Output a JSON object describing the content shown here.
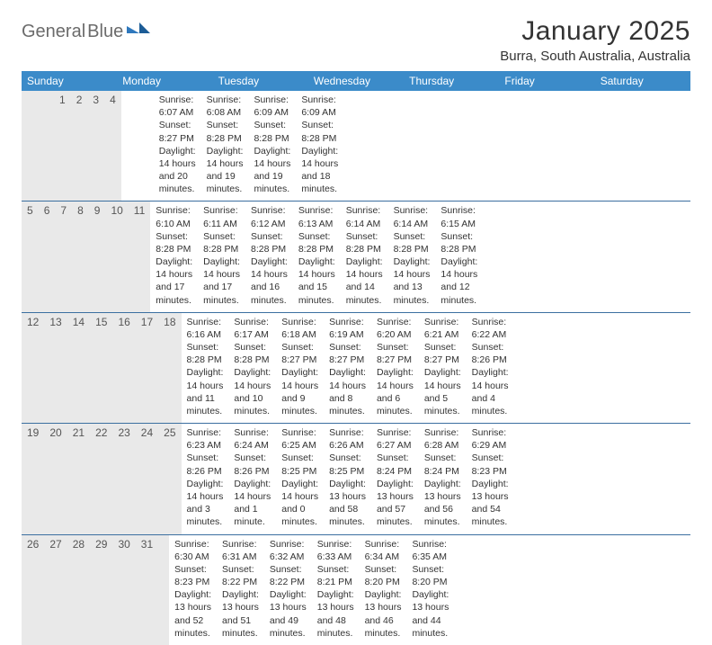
{
  "logo": {
    "word1": "General",
    "word2": "Blue"
  },
  "title": "January 2025",
  "location": "Burra, South Australia, Australia",
  "colors": {
    "header_bg": "#3b8bc9",
    "header_text": "#ffffff",
    "rule": "#3b6fa0",
    "daynum_bg": "#e9e9e9",
    "text": "#333333",
    "logo_gray": "#6b6b6b",
    "logo_blue": "#2f78bd"
  },
  "days_of_week": [
    "Sunday",
    "Monday",
    "Tuesday",
    "Wednesday",
    "Thursday",
    "Friday",
    "Saturday"
  ],
  "weeks": [
    {
      "nums": [
        "",
        "",
        "",
        "1",
        "2",
        "3",
        "4"
      ],
      "cells": [
        {
          "sunrise": "",
          "sunset": "",
          "daylight1": "",
          "daylight2": ""
        },
        {
          "sunrise": "",
          "sunset": "",
          "daylight1": "",
          "daylight2": ""
        },
        {
          "sunrise": "",
          "sunset": "",
          "daylight1": "",
          "daylight2": ""
        },
        {
          "sunrise": "Sunrise: 6:07 AM",
          "sunset": "Sunset: 8:27 PM",
          "daylight1": "Daylight: 14 hours",
          "daylight2": "and 20 minutes."
        },
        {
          "sunrise": "Sunrise: 6:08 AM",
          "sunset": "Sunset: 8:28 PM",
          "daylight1": "Daylight: 14 hours",
          "daylight2": "and 19 minutes."
        },
        {
          "sunrise": "Sunrise: 6:09 AM",
          "sunset": "Sunset: 8:28 PM",
          "daylight1": "Daylight: 14 hours",
          "daylight2": "and 19 minutes."
        },
        {
          "sunrise": "Sunrise: 6:09 AM",
          "sunset": "Sunset: 8:28 PM",
          "daylight1": "Daylight: 14 hours",
          "daylight2": "and 18 minutes."
        }
      ]
    },
    {
      "nums": [
        "5",
        "6",
        "7",
        "8",
        "9",
        "10",
        "11"
      ],
      "cells": [
        {
          "sunrise": "Sunrise: 6:10 AM",
          "sunset": "Sunset: 8:28 PM",
          "daylight1": "Daylight: 14 hours",
          "daylight2": "and 17 minutes."
        },
        {
          "sunrise": "Sunrise: 6:11 AM",
          "sunset": "Sunset: 8:28 PM",
          "daylight1": "Daylight: 14 hours",
          "daylight2": "and 17 minutes."
        },
        {
          "sunrise": "Sunrise: 6:12 AM",
          "sunset": "Sunset: 8:28 PM",
          "daylight1": "Daylight: 14 hours",
          "daylight2": "and 16 minutes."
        },
        {
          "sunrise": "Sunrise: 6:13 AM",
          "sunset": "Sunset: 8:28 PM",
          "daylight1": "Daylight: 14 hours",
          "daylight2": "and 15 minutes."
        },
        {
          "sunrise": "Sunrise: 6:14 AM",
          "sunset": "Sunset: 8:28 PM",
          "daylight1": "Daylight: 14 hours",
          "daylight2": "and 14 minutes."
        },
        {
          "sunrise": "Sunrise: 6:14 AM",
          "sunset": "Sunset: 8:28 PM",
          "daylight1": "Daylight: 14 hours",
          "daylight2": "and 13 minutes."
        },
        {
          "sunrise": "Sunrise: 6:15 AM",
          "sunset": "Sunset: 8:28 PM",
          "daylight1": "Daylight: 14 hours",
          "daylight2": "and 12 minutes."
        }
      ]
    },
    {
      "nums": [
        "12",
        "13",
        "14",
        "15",
        "16",
        "17",
        "18"
      ],
      "cells": [
        {
          "sunrise": "Sunrise: 6:16 AM",
          "sunset": "Sunset: 8:28 PM",
          "daylight1": "Daylight: 14 hours",
          "daylight2": "and 11 minutes."
        },
        {
          "sunrise": "Sunrise: 6:17 AM",
          "sunset": "Sunset: 8:28 PM",
          "daylight1": "Daylight: 14 hours",
          "daylight2": "and 10 minutes."
        },
        {
          "sunrise": "Sunrise: 6:18 AM",
          "sunset": "Sunset: 8:27 PM",
          "daylight1": "Daylight: 14 hours",
          "daylight2": "and 9 minutes."
        },
        {
          "sunrise": "Sunrise: 6:19 AM",
          "sunset": "Sunset: 8:27 PM",
          "daylight1": "Daylight: 14 hours",
          "daylight2": "and 8 minutes."
        },
        {
          "sunrise": "Sunrise: 6:20 AM",
          "sunset": "Sunset: 8:27 PM",
          "daylight1": "Daylight: 14 hours",
          "daylight2": "and 6 minutes."
        },
        {
          "sunrise": "Sunrise: 6:21 AM",
          "sunset": "Sunset: 8:27 PM",
          "daylight1": "Daylight: 14 hours",
          "daylight2": "and 5 minutes."
        },
        {
          "sunrise": "Sunrise: 6:22 AM",
          "sunset": "Sunset: 8:26 PM",
          "daylight1": "Daylight: 14 hours",
          "daylight2": "and 4 minutes."
        }
      ]
    },
    {
      "nums": [
        "19",
        "20",
        "21",
        "22",
        "23",
        "24",
        "25"
      ],
      "cells": [
        {
          "sunrise": "Sunrise: 6:23 AM",
          "sunset": "Sunset: 8:26 PM",
          "daylight1": "Daylight: 14 hours",
          "daylight2": "and 3 minutes."
        },
        {
          "sunrise": "Sunrise: 6:24 AM",
          "sunset": "Sunset: 8:26 PM",
          "daylight1": "Daylight: 14 hours",
          "daylight2": "and 1 minute."
        },
        {
          "sunrise": "Sunrise: 6:25 AM",
          "sunset": "Sunset: 8:25 PM",
          "daylight1": "Daylight: 14 hours",
          "daylight2": "and 0 minutes."
        },
        {
          "sunrise": "Sunrise: 6:26 AM",
          "sunset": "Sunset: 8:25 PM",
          "daylight1": "Daylight: 13 hours",
          "daylight2": "and 58 minutes."
        },
        {
          "sunrise": "Sunrise: 6:27 AM",
          "sunset": "Sunset: 8:24 PM",
          "daylight1": "Daylight: 13 hours",
          "daylight2": "and 57 minutes."
        },
        {
          "sunrise": "Sunrise: 6:28 AM",
          "sunset": "Sunset: 8:24 PM",
          "daylight1": "Daylight: 13 hours",
          "daylight2": "and 56 minutes."
        },
        {
          "sunrise": "Sunrise: 6:29 AM",
          "sunset": "Sunset: 8:23 PM",
          "daylight1": "Daylight: 13 hours",
          "daylight2": "and 54 minutes."
        }
      ]
    },
    {
      "nums": [
        "26",
        "27",
        "28",
        "29",
        "30",
        "31",
        ""
      ],
      "cells": [
        {
          "sunrise": "Sunrise: 6:30 AM",
          "sunset": "Sunset: 8:23 PM",
          "daylight1": "Daylight: 13 hours",
          "daylight2": "and 52 minutes."
        },
        {
          "sunrise": "Sunrise: 6:31 AM",
          "sunset": "Sunset: 8:22 PM",
          "daylight1": "Daylight: 13 hours",
          "daylight2": "and 51 minutes."
        },
        {
          "sunrise": "Sunrise: 6:32 AM",
          "sunset": "Sunset: 8:22 PM",
          "daylight1": "Daylight: 13 hours",
          "daylight2": "and 49 minutes."
        },
        {
          "sunrise": "Sunrise: 6:33 AM",
          "sunset": "Sunset: 8:21 PM",
          "daylight1": "Daylight: 13 hours",
          "daylight2": "and 48 minutes."
        },
        {
          "sunrise": "Sunrise: 6:34 AM",
          "sunset": "Sunset: 8:20 PM",
          "daylight1": "Daylight: 13 hours",
          "daylight2": "and 46 minutes."
        },
        {
          "sunrise": "Sunrise: 6:35 AM",
          "sunset": "Sunset: 8:20 PM",
          "daylight1": "Daylight: 13 hours",
          "daylight2": "and 44 minutes."
        },
        {
          "sunrise": "",
          "sunset": "",
          "daylight1": "",
          "daylight2": ""
        }
      ]
    }
  ]
}
